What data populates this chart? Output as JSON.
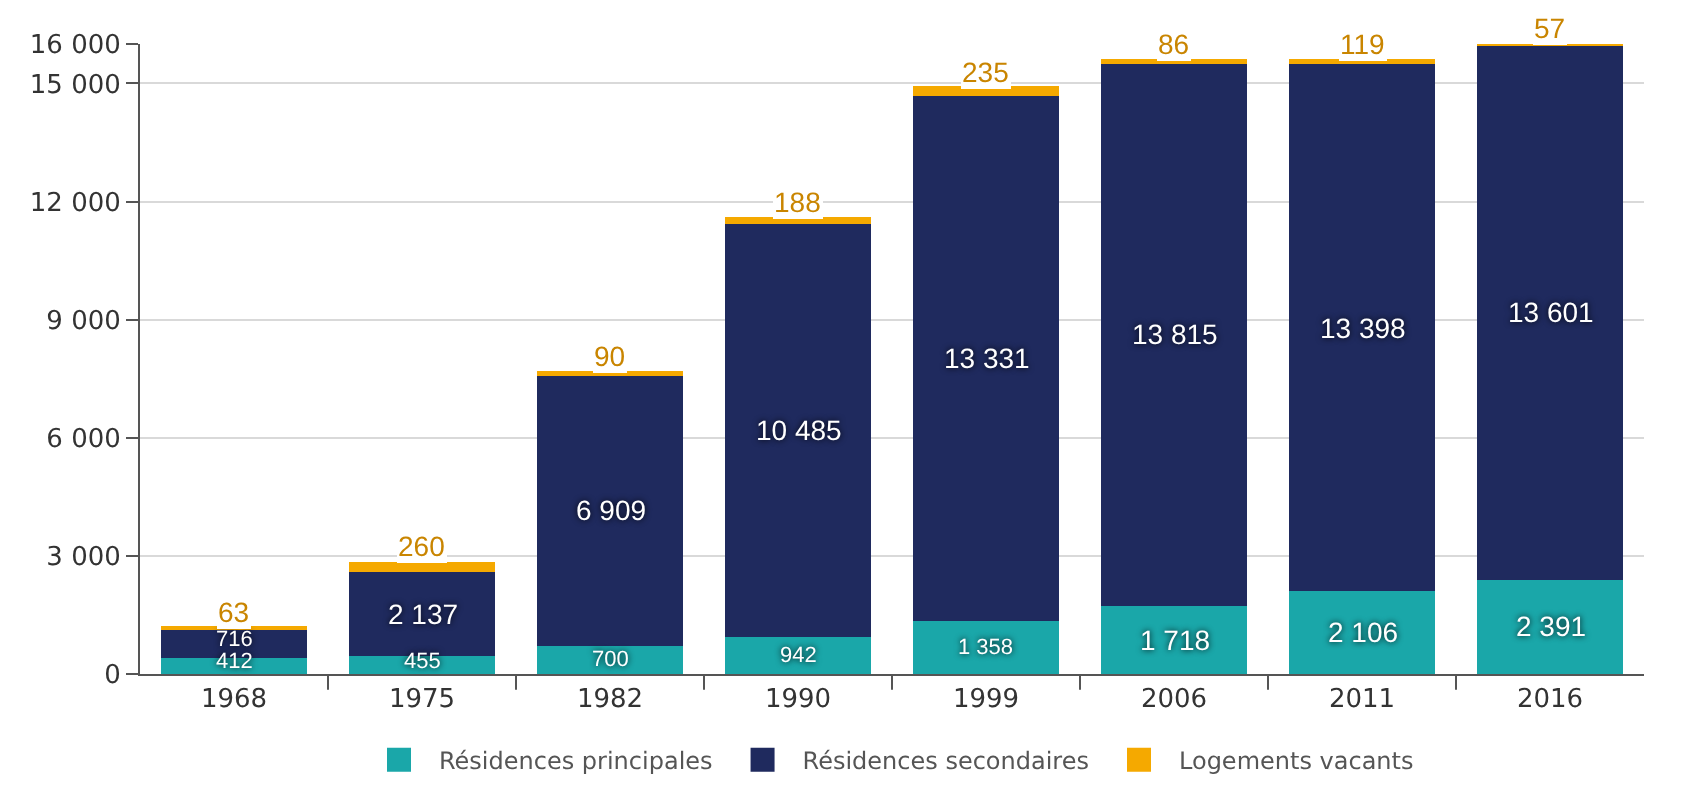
{
  "chart_data": {
    "type": "bar",
    "stacked": true,
    "categories": [
      "1968",
      "1975",
      "1982",
      "1990",
      "1999",
      "2006",
      "2011",
      "2016"
    ],
    "series": [
      {
        "name": "Résidences principales",
        "color": "#1aa7a9",
        "values": [
          412,
          455,
          700,
          942,
          1358,
          1718,
          2106,
          2391
        ],
        "value_labels": [
          "412",
          "455",
          "700",
          "942",
          "1 358",
          "1 718",
          "2 106",
          "2 391"
        ]
      },
      {
        "name": "Résidences secondaires",
        "color": "#1f2a5e",
        "values": [
          716,
          2137,
          6909,
          10485,
          13331,
          13815,
          13398,
          13601
        ],
        "value_labels": [
          "716",
          "2 137",
          "6 909",
          "10 485",
          "13 331",
          "13 815",
          "13 398",
          "13 601"
        ]
      },
      {
        "name": "Logements vacants",
        "color": "#f5a900",
        "values": [
          63,
          260,
          90,
          188,
          235,
          86,
          119,
          57
        ],
        "value_labels": [
          "63",
          "260",
          "90",
          "188",
          "235",
          "86",
          "119",
          "57"
        ]
      }
    ],
    "ylim": [
      0,
      16000
    ],
    "yticks": [
      {
        "value": 0,
        "label": "0"
      },
      {
        "value": 3000,
        "label": "3 000"
      },
      {
        "value": 6000,
        "label": "6 000"
      },
      {
        "value": 9000,
        "label": "9 000"
      },
      {
        "value": 12000,
        "label": "12 000"
      },
      {
        "value": 15000,
        "label": "15 000"
      },
      {
        "value": 16000,
        "label": "16 000"
      }
    ],
    "grid": "y",
    "legend": "bottom"
  }
}
